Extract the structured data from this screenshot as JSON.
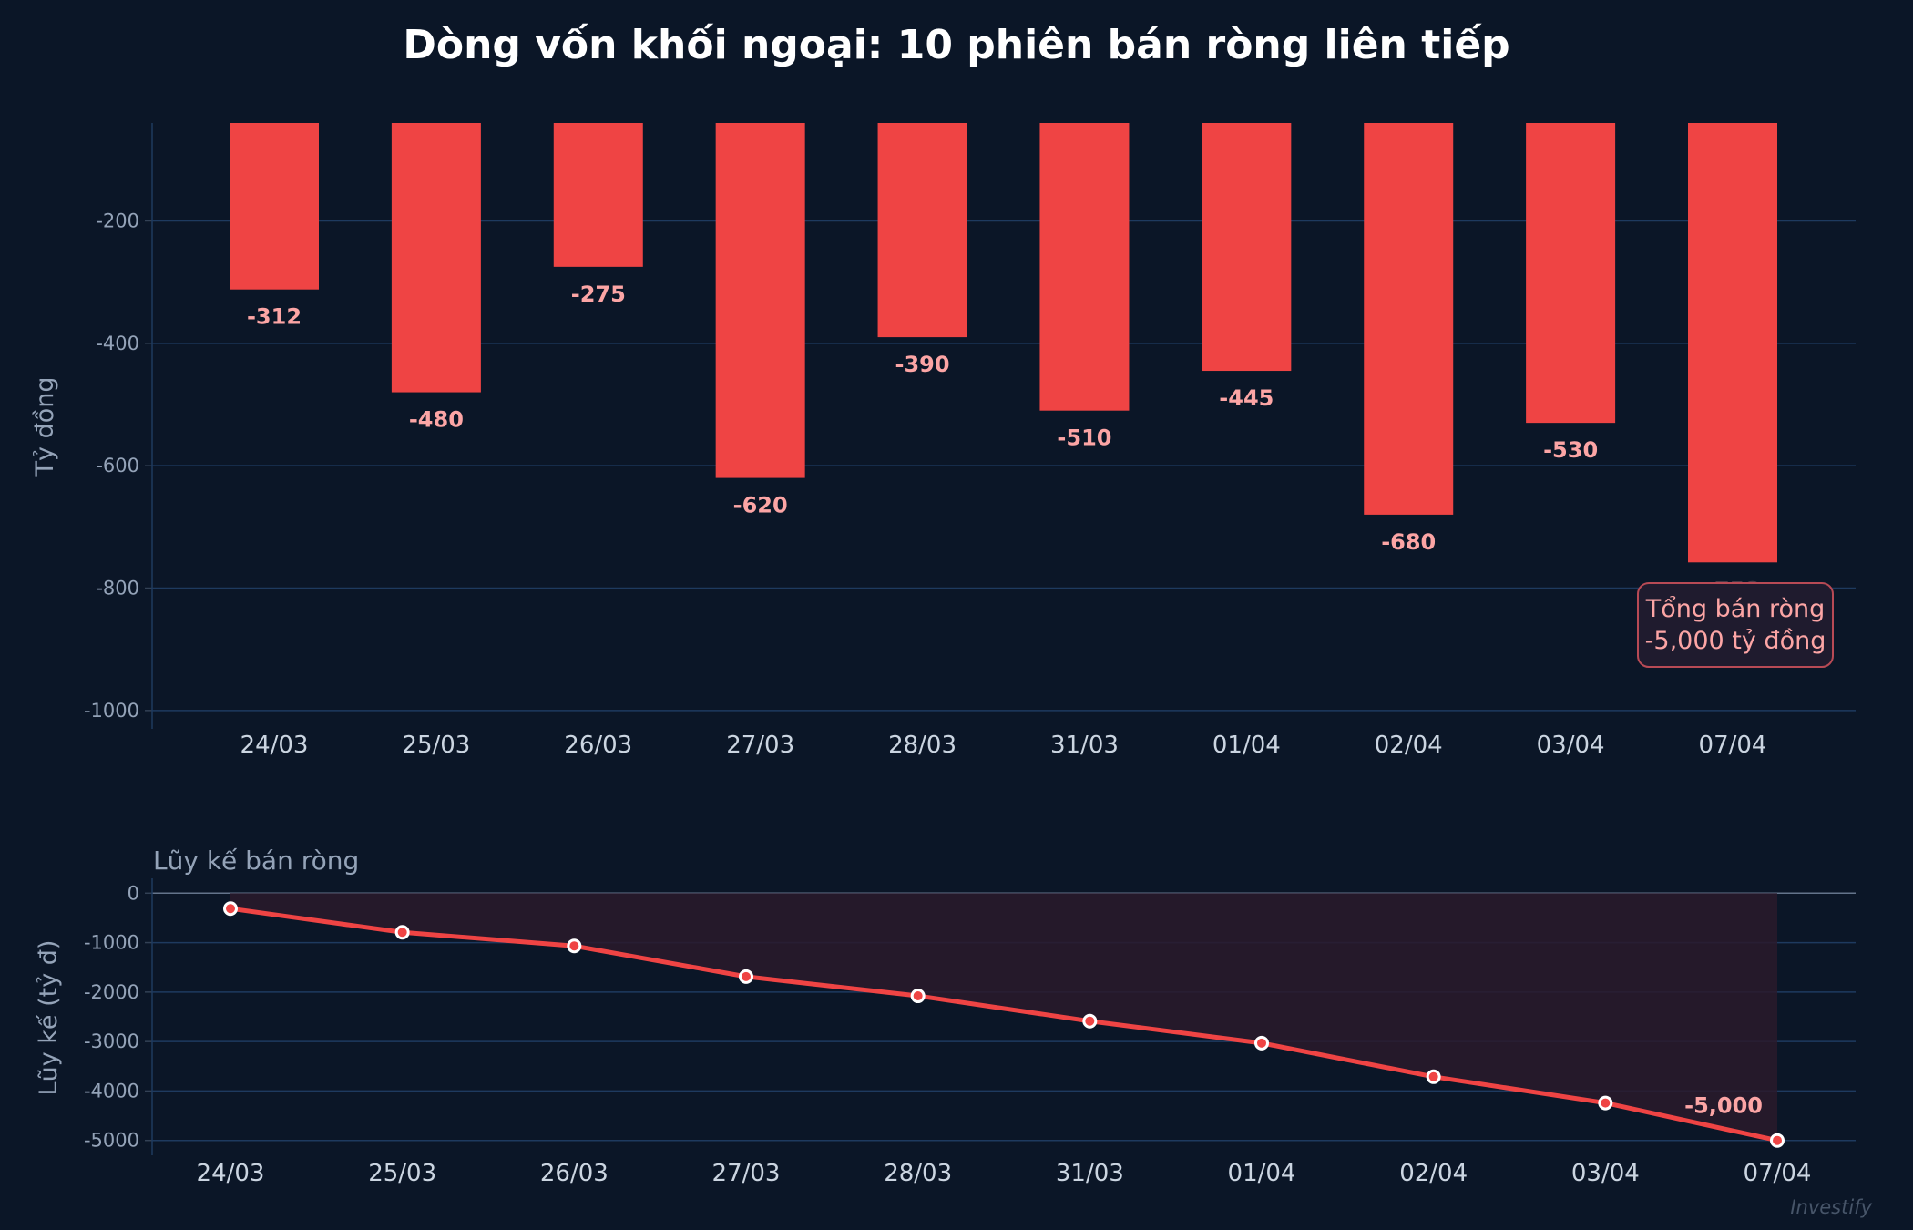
{
  "chart_data": [
    {
      "type": "bar",
      "title": "Dòng vốn khối ngoại: 10 phiên bán ròng liên tiếp",
      "ylabel": "Tỷ đồng",
      "xlabel": "",
      "categories": [
        "24/03",
        "25/03",
        "26/03",
        "27/03",
        "28/03",
        "31/03",
        "01/04",
        "02/04",
        "03/04",
        "07/04"
      ],
      "values": [
        -312,
        -480,
        -275,
        -620,
        -390,
        -510,
        -445,
        -680,
        -530,
        -758
      ],
      "data_labels": [
        "-312",
        "-480",
        "-275",
        "-620",
        "-390",
        "-510",
        "-445",
        "-680",
        "-530",
        "-758"
      ],
      "yticks": [
        -200,
        -400,
        -600,
        -800,
        -1000
      ],
      "ylim": [
        -1030,
        -40
      ],
      "grid": true,
      "annotation": {
        "line1": "Tổng bán ròng",
        "line2": "-5,000 tỷ đồng"
      },
      "colors": {
        "bar": "#ef4444",
        "label": "#fca5a5",
        "grid": "#1e3a5f",
        "background": "#0b1627"
      }
    },
    {
      "type": "area",
      "title": "Lũy kế bán ròng",
      "ylabel": "Lũy kế (tỷ đ)",
      "categories": [
        "24/03",
        "25/03",
        "26/03",
        "27/03",
        "28/03",
        "31/03",
        "01/04",
        "02/04",
        "03/04",
        "07/04"
      ],
      "values": [
        -312,
        -792,
        -1067,
        -1687,
        -2077,
        -2587,
        -3032,
        -3712,
        -4242,
        -5000
      ],
      "yticks": [
        0,
        -1000,
        -2000,
        -3000,
        -4000,
        -5000
      ],
      "ylim": [
        -5300,
        300
      ],
      "grid": true,
      "end_label": "-5,000",
      "colors": {
        "line": "#ef4444",
        "fill": "#2a1a2b",
        "marker_edge": "#ffffff"
      }
    }
  ],
  "watermark": "Investify"
}
